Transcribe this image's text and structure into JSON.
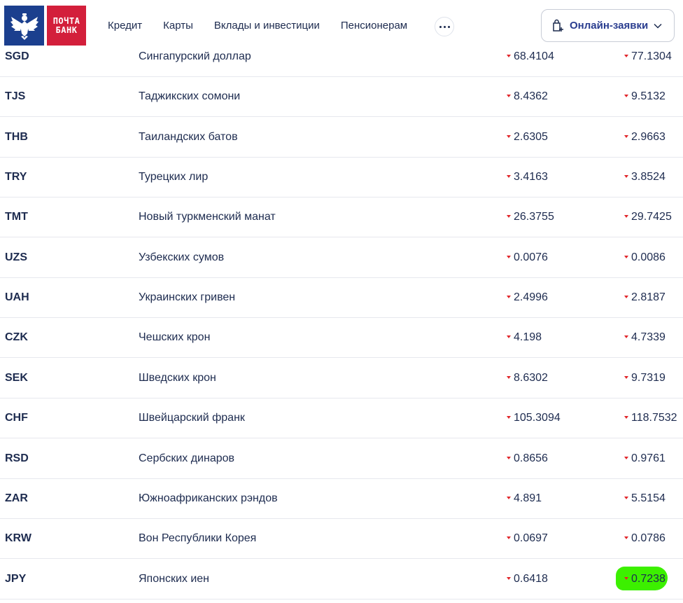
{
  "header": {
    "logo_line1": "ПОЧТА",
    "logo_line2": "БАНК",
    "nav": [
      {
        "label": "Кредит"
      },
      {
        "label": "Карты"
      },
      {
        "label": "Вклады и инвестиции"
      },
      {
        "label": "Пенсионерам"
      }
    ],
    "apply_button_label": "Онлайн-заявки"
  },
  "rates": [
    {
      "code": "SGD",
      "name": "Сингапурский доллар",
      "buy": "68.4104",
      "sell": "77.1304"
    },
    {
      "code": "TJS",
      "name": "Таджикских сомони",
      "buy": "8.4362",
      "sell": "9.5132"
    },
    {
      "code": "THB",
      "name": "Таиландских батов",
      "buy": "2.6305",
      "sell": "2.9663"
    },
    {
      "code": "TRY",
      "name": "Турецких лир",
      "buy": "3.4163",
      "sell": "3.8524"
    },
    {
      "code": "TMT",
      "name": "Новый туркменский манат",
      "buy": "26.3755",
      "sell": "29.7425"
    },
    {
      "code": "UZS",
      "name": "Узбекских сумов",
      "buy": "0.0076",
      "sell": "0.0086"
    },
    {
      "code": "UAH",
      "name": "Украинских гривен",
      "buy": "2.4996",
      "sell": "2.8187"
    },
    {
      "code": "CZK",
      "name": "Чешских крон",
      "buy": "4.198",
      "sell": "4.7339"
    },
    {
      "code": "SEK",
      "name": "Шведских крон",
      "buy": "8.6302",
      "sell": "9.7319"
    },
    {
      "code": "CHF",
      "name": "Швейцарский франк",
      "buy": "105.3094",
      "sell": "118.7532"
    },
    {
      "code": "RSD",
      "name": "Сербских динаров",
      "buy": "0.8656",
      "sell": "0.9761"
    },
    {
      "code": "ZAR",
      "name": "Южноафриканских рэндов",
      "buy": "4.891",
      "sell": "5.5154"
    },
    {
      "code": "KRW",
      "name": "Вон Республики Корея",
      "buy": "0.0697",
      "sell": "0.0786"
    },
    {
      "code": "JPY",
      "name": "Японских иен",
      "buy": "0.6418",
      "sell": "0.7238"
    }
  ],
  "colors": {
    "brand_blue": "#1b3f8e",
    "brand_red": "#d31f3b",
    "down_arrow": "#e1262b",
    "highlight": "#3cf000"
  },
  "icons": {
    "rate_change": "down-triangle-icon",
    "apply": "shopping-bag-plus-icon",
    "more": "more-dots-icon",
    "dropdown": "chevron-down-icon"
  }
}
